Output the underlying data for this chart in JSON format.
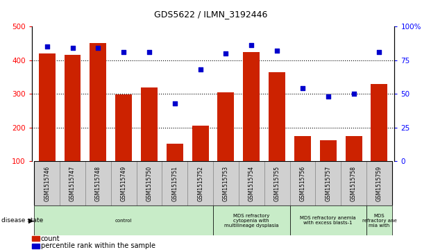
{
  "title": "GDS5622 / ILMN_3192446",
  "samples": [
    "GSM1515746",
    "GSM1515747",
    "GSM1515748",
    "GSM1515749",
    "GSM1515750",
    "GSM1515751",
    "GSM1515752",
    "GSM1515753",
    "GSM1515754",
    "GSM1515755",
    "GSM1515756",
    "GSM1515757",
    "GSM1515758",
    "GSM1515759"
  ],
  "counts": [
    420,
    415,
    450,
    298,
    318,
    152,
    205,
    305,
    425,
    365,
    175,
    163,
    175,
    330
  ],
  "percentiles": [
    85,
    84,
    84,
    81,
    81,
    43,
    68,
    80,
    86,
    82,
    54,
    48,
    50,
    81
  ],
  "ylim_left": [
    100,
    500
  ],
  "ylim_right": [
    0,
    100
  ],
  "yticks_left": [
    100,
    200,
    300,
    400,
    500
  ],
  "yticks_right": [
    0,
    25,
    50,
    75,
    100
  ],
  "bar_color": "#cc2200",
  "dot_color": "#0000cc",
  "sample_bg": "#d0d0d0",
  "disease_groups": [
    {
      "label": "control",
      "start": 0,
      "end": 7,
      "color": "#c8ecc8"
    },
    {
      "label": "MDS refractory\ncytopenia with\nmultilineage dysplasia",
      "start": 7,
      "end": 10,
      "color": "#c8ecc8"
    },
    {
      "label": "MDS refractory anemia\nwith excess blasts-1",
      "start": 10,
      "end": 13,
      "color": "#c8ecc8"
    },
    {
      "label": "MDS\nrefractory ane\nmia with",
      "start": 13,
      "end": 14,
      "color": "#c8ecc8"
    }
  ],
  "disease_state_label": "disease state",
  "legend_bar_label": "count",
  "legend_dot_label": "percentile rank within the sample"
}
